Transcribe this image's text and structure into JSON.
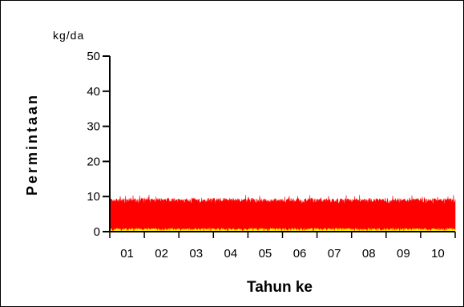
{
  "chart_data": {
    "type": "area",
    "ylabel": "Permintaan",
    "xlabel": "Tahun ke",
    "unit": "kg/da",
    "ylim": [
      0,
      50
    ],
    "yticks": [
      0,
      10,
      20,
      30,
      40,
      50
    ],
    "xticks": [
      "01",
      "02",
      "03",
      "04",
      "05",
      "06",
      "07",
      "08",
      "09",
      "10"
    ],
    "series": [
      {
        "color": "#ff0000",
        "typical_min": 0,
        "typical_max": 9.5,
        "peak": 10.5
      },
      {
        "color": "#ffff00",
        "typical_max": 1
      }
    ]
  }
}
